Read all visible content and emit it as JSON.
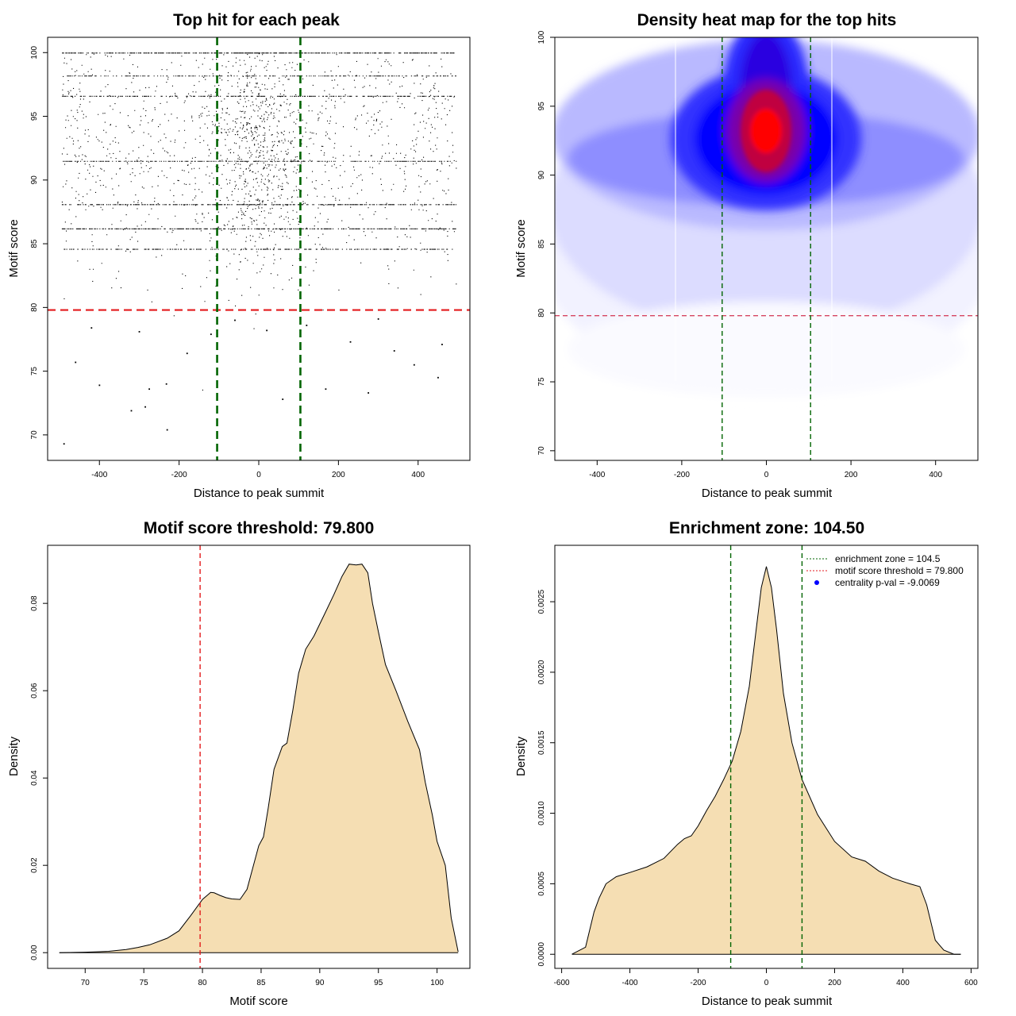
{
  "chart_data": [
    {
      "type": "scatter",
      "title": "Top hit for each peak",
      "xlabel": "Distance to peak summit",
      "ylabel": "Motif score",
      "xlim": [
        -530,
        530
      ],
      "ylim": [
        68,
        101.2
      ],
      "xticks": [
        -400,
        -200,
        0,
        200,
        400
      ],
      "yticks": [
        70,
        75,
        80,
        85,
        90,
        95,
        100
      ],
      "points": [
        {
          "x": -489,
          "y": 69.3
        },
        {
          "x": -230,
          "y": 70.4
        },
        {
          "x": -320,
          "y": 71.9
        },
        {
          "x": -285,
          "y": 72.2
        },
        {
          "x": -400,
          "y": 73.9
        },
        {
          "x": -275,
          "y": 73.6
        },
        {
          "x": -232,
          "y": 74.0
        },
        {
          "x": 168,
          "y": 73.6
        },
        {
          "x": 275,
          "y": 73.3
        },
        {
          "x": 60,
          "y": 72.8
        },
        {
          "x": -460,
          "y": 75.7
        },
        {
          "x": 390,
          "y": 75.5
        },
        {
          "x": 340,
          "y": 76.6
        },
        {
          "x": -180,
          "y": 76.4
        },
        {
          "x": 230,
          "y": 77.3
        },
        {
          "x": -300,
          "y": 78.1
        },
        {
          "x": 120,
          "y": 78.6
        },
        {
          "x": -60,
          "y": 79.0
        },
        {
          "x": 460,
          "y": 77.1
        },
        {
          "x": -420,
          "y": 78.4
        },
        {
          "x": 20,
          "y": 78.2
        },
        {
          "x": 300,
          "y": 79.1
        },
        {
          "x": -120,
          "y": 77.9
        },
        {
          "x": 450,
          "y": 74.5
        }
      ],
      "thresholds": {
        "y": 79.8,
        "x": [
          -104.5,
          104.5
        ]
      }
    },
    {
      "type": "heatmap",
      "title": "Density heat map for the top hits",
      "xlabel": "Distance to peak summit",
      "ylabel": "Motif score",
      "xlim": [
        -500,
        500
      ],
      "ylim": [
        69.3,
        100
      ],
      "xticks": [
        -400,
        -200,
        0,
        200,
        400
      ],
      "yticks": [
        70,
        75,
        80,
        85,
        90,
        95,
        100
      ],
      "thresholds": {
        "y": 79.8,
        "x": [
          -104.5,
          104.5
        ]
      }
    },
    {
      "type": "area",
      "title": "Motif score threshold: 79.800",
      "xlabel": "Motif score",
      "ylabel": "Density",
      "xlim": [
        66.8,
        102.8
      ],
      "ylim": [
        -0.0036,
        0.0933
      ],
      "xticks": [
        70,
        75,
        80,
        85,
        90,
        95,
        100
      ],
      "yticks": [
        0.0,
        0.02,
        0.04,
        0.06,
        0.08
      ],
      "ytick_labels": [
        "0.00",
        "0.02",
        "0.04",
        "0.06",
        "0.08"
      ],
      "x": [
        67.8,
        70,
        72,
        73.5,
        74.5,
        75.5,
        77,
        78,
        79,
        80,
        80.7,
        81,
        81.5,
        82,
        82.5,
        83.2,
        83.8,
        84.3,
        84.8,
        85.2,
        85.6,
        86.1,
        86.8,
        87.2,
        87.7,
        88.2,
        88.8,
        89.5,
        90.4,
        91.2,
        91.9,
        92.5,
        93.1,
        93.6,
        94.1,
        94.5,
        95,
        95.6,
        96.5,
        97.5,
        98.5,
        99,
        99.6,
        100,
        100.7,
        101.2,
        101.8
      ],
      "y": [
        0,
        0.0001,
        0.0003,
        0.0007,
        0.0012,
        0.0018,
        0.0033,
        0.005,
        0.0085,
        0.0122,
        0.0138,
        0.0137,
        0.0131,
        0.0126,
        0.0123,
        0.0122,
        0.0145,
        0.0195,
        0.0245,
        0.0265,
        0.033,
        0.042,
        0.0472,
        0.048,
        0.0555,
        0.064,
        0.0695,
        0.0725,
        0.0775,
        0.082,
        0.0862,
        0.089,
        0.0888,
        0.089,
        0.087,
        0.08,
        0.0735,
        0.066,
        0.06,
        0.053,
        0.0465,
        0.039,
        0.0315,
        0.0255,
        0.02,
        0.008,
        0.0002
      ],
      "threshold": 79.8
    },
    {
      "type": "area",
      "title": "Enrichment zone: 104.50",
      "xlabel": "Distance to peak summit",
      "ylabel": "Density",
      "xlim": [
        -620,
        620
      ],
      "ylim": [
        -0.0001,
        0.0029
      ],
      "xticks": [
        -600,
        -400,
        -200,
        0,
        200,
        400,
        600
      ],
      "yticks": [
        0.0,
        0.0005,
        0.001,
        0.0015,
        0.002,
        0.0025
      ],
      "ytick_labels": [
        "0.0000",
        "0.0005",
        "0.0010",
        "0.0015",
        "0.0020",
        "0.0025"
      ],
      "x": [
        -570,
        -530,
        -505,
        -490,
        -470,
        -440,
        -400,
        -350,
        -300,
        -260,
        -240,
        -220,
        -200,
        -175,
        -150,
        -125,
        -100,
        -75,
        -50,
        -30,
        -15,
        0,
        15,
        30,
        50,
        75,
        104.5,
        150,
        200,
        250,
        290,
        330,
        370,
        420,
        450,
        470,
        495,
        520,
        550,
        570
      ],
      "y": [
        0,
        5e-05,
        0.0003,
        0.0004,
        0.0005,
        0.00055,
        0.00058,
        0.00062,
        0.00068,
        0.00078,
        0.00082,
        0.00084,
        0.00091,
        0.00102,
        0.00112,
        0.00124,
        0.00137,
        0.00158,
        0.0019,
        0.0023,
        0.0026,
        0.00275,
        0.0026,
        0.0023,
        0.00185,
        0.0015,
        0.00124,
        0.00099,
        0.0008,
        0.00069,
        0.00066,
        0.00059,
        0.00054,
        0.0005,
        0.00048,
        0.00035,
        0.0001,
        3e-05,
        0,
        0
      ],
      "zone": 104.5,
      "legend": {
        "position": "top-right",
        "entries": [
          "enrichment zone = 104.5",
          "motif score threshold = 79.800",
          "centrality p-val = -9.0069"
        ]
      }
    }
  ],
  "colors": {
    "zone": "#006400",
    "threshold": "#e31a1c",
    "heat_threshold": "#d64561",
    "fill": "#f5deb3",
    "point": "#000000",
    "pval_marker": "#0000ff"
  }
}
